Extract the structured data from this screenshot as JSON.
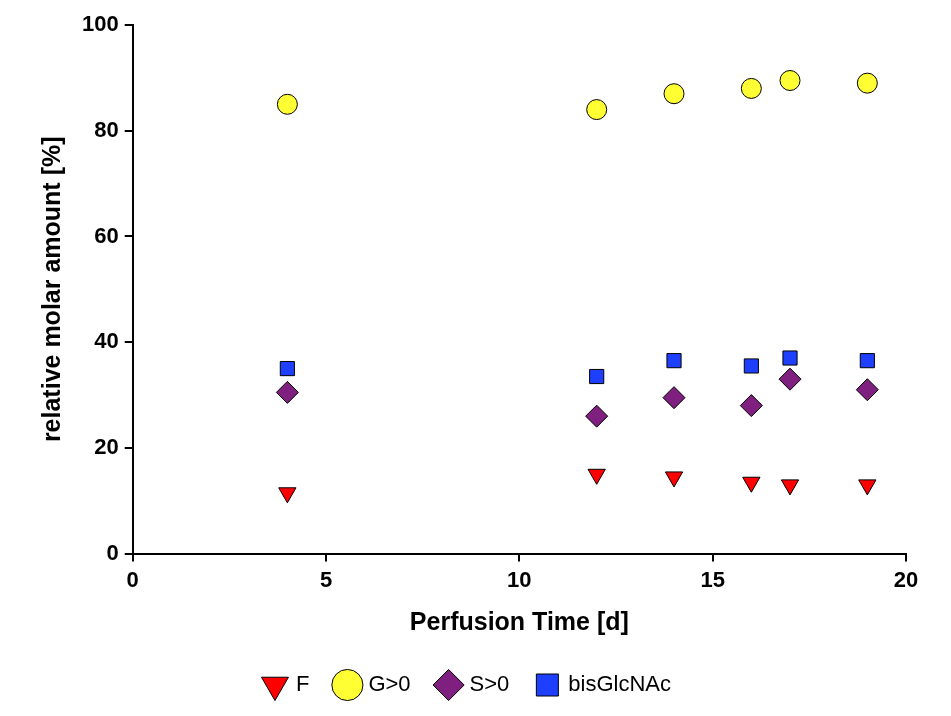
{
  "chart_data": {
    "type": "scatter",
    "x_label": "Perfusion Time [d]",
    "y_label": "relative molar amount [%]",
    "x": [
      4,
      12,
      14,
      16,
      17,
      19
    ],
    "series": [
      {
        "name": "F",
        "color": "#ff0000",
        "marker": "triangle-down",
        "values": [
          11.5,
          15,
          14.5,
          13.5,
          13,
          13
        ]
      },
      {
        "name": "G>0",
        "color": "#ffff33",
        "marker": "circle",
        "values": [
          85,
          84,
          87,
          88,
          89.5,
          89
        ]
      },
      {
        "name": "S>0",
        "color": "#7f1f7f",
        "marker": "diamond",
        "values": [
          30.5,
          26,
          29.5,
          28,
          33,
          31
        ]
      },
      {
        "name": "bisGlcNAc",
        "color": "#1f3fff",
        "marker": "square",
        "values": [
          35,
          33.5,
          36.5,
          35.5,
          37,
          36.5
        ]
      }
    ],
    "xlim": [
      0,
      20
    ],
    "xticks": [
      0,
      5,
      10,
      15,
      20
    ],
    "ylim": [
      0,
      100
    ],
    "yticks": [
      0,
      20,
      40,
      60,
      80,
      100
    ],
    "grid": false,
    "legend": "bottom"
  }
}
